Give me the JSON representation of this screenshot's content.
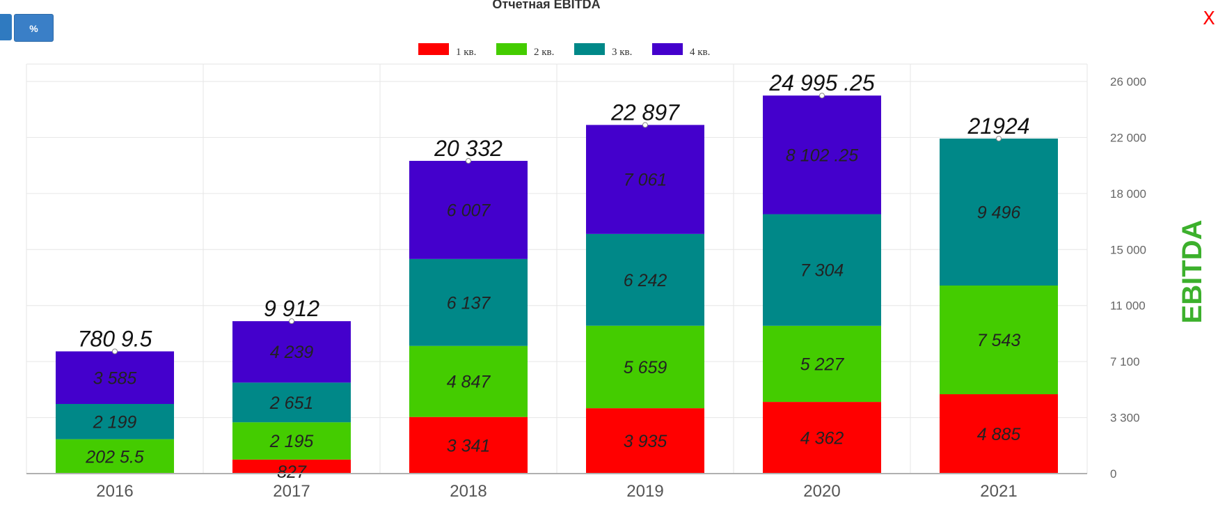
{
  "header": {
    "title": "Отчетная EBITDA",
    "percent_button_label": "%",
    "close_label": "X"
  },
  "colors": {
    "q1": "#ff0000",
    "q2": "#44cc00",
    "q3": "#008888",
    "q4": "#4400cc",
    "ylabel": "#3cb02c",
    "button": "#3a7fc7",
    "close": "#ff0000"
  },
  "chart_data": {
    "type": "bar",
    "stacked": true,
    "title": "Отчетная EBITDA",
    "xlabel": "",
    "ylabel": "EBITDA",
    "y_axis_side": "right",
    "grid": true,
    "legend_position": "top-center",
    "categories": [
      "2016",
      "2017",
      "2018",
      "2019",
      "2020",
      "2021"
    ],
    "y_ticks": [
      {
        "value": 0,
        "label": "0"
      },
      {
        "value": 3300,
        "label": "3 300"
      },
      {
        "value": 7100,
        "label": "7 100"
      },
      {
        "value": 11000,
        "label": "11 000"
      },
      {
        "value": 15000,
        "label": "15 000"
      },
      {
        "value": 18000,
        "label": "18 000"
      },
      {
        "value": 22000,
        "label": "22 000"
      },
      {
        "value": 26000,
        "label": "26 000"
      }
    ],
    "series": [
      {
        "name": "1 кв.",
        "color": "#ff0000",
        "values": [
          0,
          827,
          3341,
          3935,
          4362,
          4885
        ],
        "labels": [
          "",
          "827",
          "3 341",
          "3 935",
          "4 362",
          "4 885"
        ]
      },
      {
        "name": "2 кв.",
        "color": "#44cc00",
        "values": [
          2025.5,
          2195,
          4847,
          5659,
          5227,
          7543
        ],
        "labels": [
          "202 5.5",
          "2 195",
          "4 847",
          "5 659",
          "5 227",
          "7 543"
        ]
      },
      {
        "name": "3 кв.",
        "color": "#008888",
        "values": [
          2199,
          2651,
          6137,
          6242,
          7304,
          9496
        ],
        "labels": [
          "2 199",
          "2 651",
          "6 137",
          "6 242",
          "7 304",
          "9 496"
        ]
      },
      {
        "name": "4 кв.",
        "color": "#4400cc",
        "values": [
          3585,
          4239,
          6007,
          7061,
          8102.25,
          0
        ],
        "labels": [
          "3 585",
          "4 239",
          "6 007",
          "7 061",
          "8 102 .25",
          ""
        ]
      }
    ],
    "totals": [
      7809.5,
      9912,
      20332,
      22897,
      24995.25,
      21924
    ],
    "total_labels": [
      "780 9.5",
      "9 912",
      "20 332",
      "22 897",
      "24 995 .25",
      "21924"
    ]
  }
}
